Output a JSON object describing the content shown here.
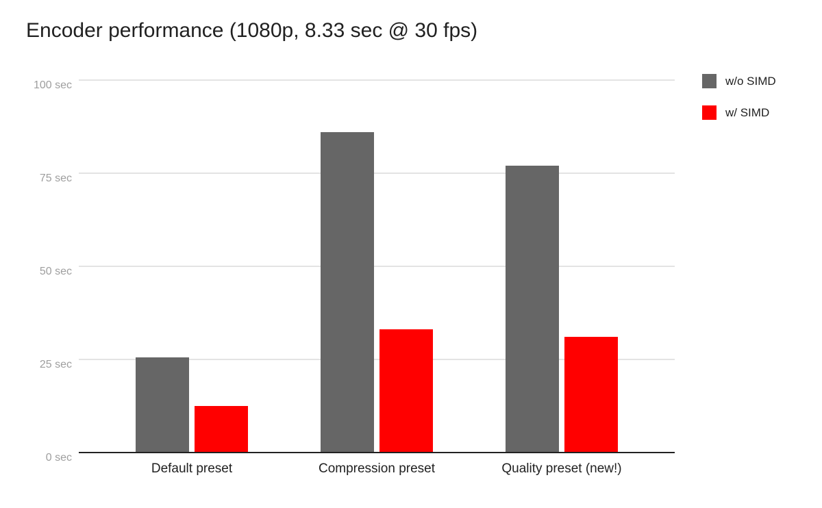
{
  "title": "Encoder performance (1080p, 8.33 sec @ 30 fps)",
  "chart_data": {
    "type": "bar",
    "title": "Encoder performance (1080p, 8.33 sec @ 30 fps)",
    "categories": [
      "Default preset",
      "Compression preset",
      "Quality preset (new!)"
    ],
    "series": [
      {
        "name": "w/o SIMD",
        "color": "#666666",
        "values": [
          25.5,
          86,
          77
        ]
      },
      {
        "name": "w/ SIMD",
        "color": "#ff0000",
        "values": [
          12.5,
          33,
          31
        ]
      }
    ],
    "xlabel": "",
    "ylabel": "",
    "ylim": [
      0,
      100
    ],
    "yticks": [
      {
        "value": 0,
        "label": "0 sec"
      },
      {
        "value": 25,
        "label": "25 sec"
      },
      {
        "value": 50,
        "label": "50 sec"
      },
      {
        "value": 75,
        "label": "75 sec"
      },
      {
        "value": 100,
        "label": "100 sec"
      }
    ],
    "grid": true,
    "legend_position": "top-right"
  },
  "colors": {
    "background": "#ffffff",
    "title_text": "#212121",
    "y_tick_label": "#9e9e9e",
    "category_label": "#212121",
    "gridline": "#e3e3e3",
    "axis_baseline": "#212121",
    "series_wo_simd": "#666666",
    "series_w_simd": "#ff0000"
  }
}
